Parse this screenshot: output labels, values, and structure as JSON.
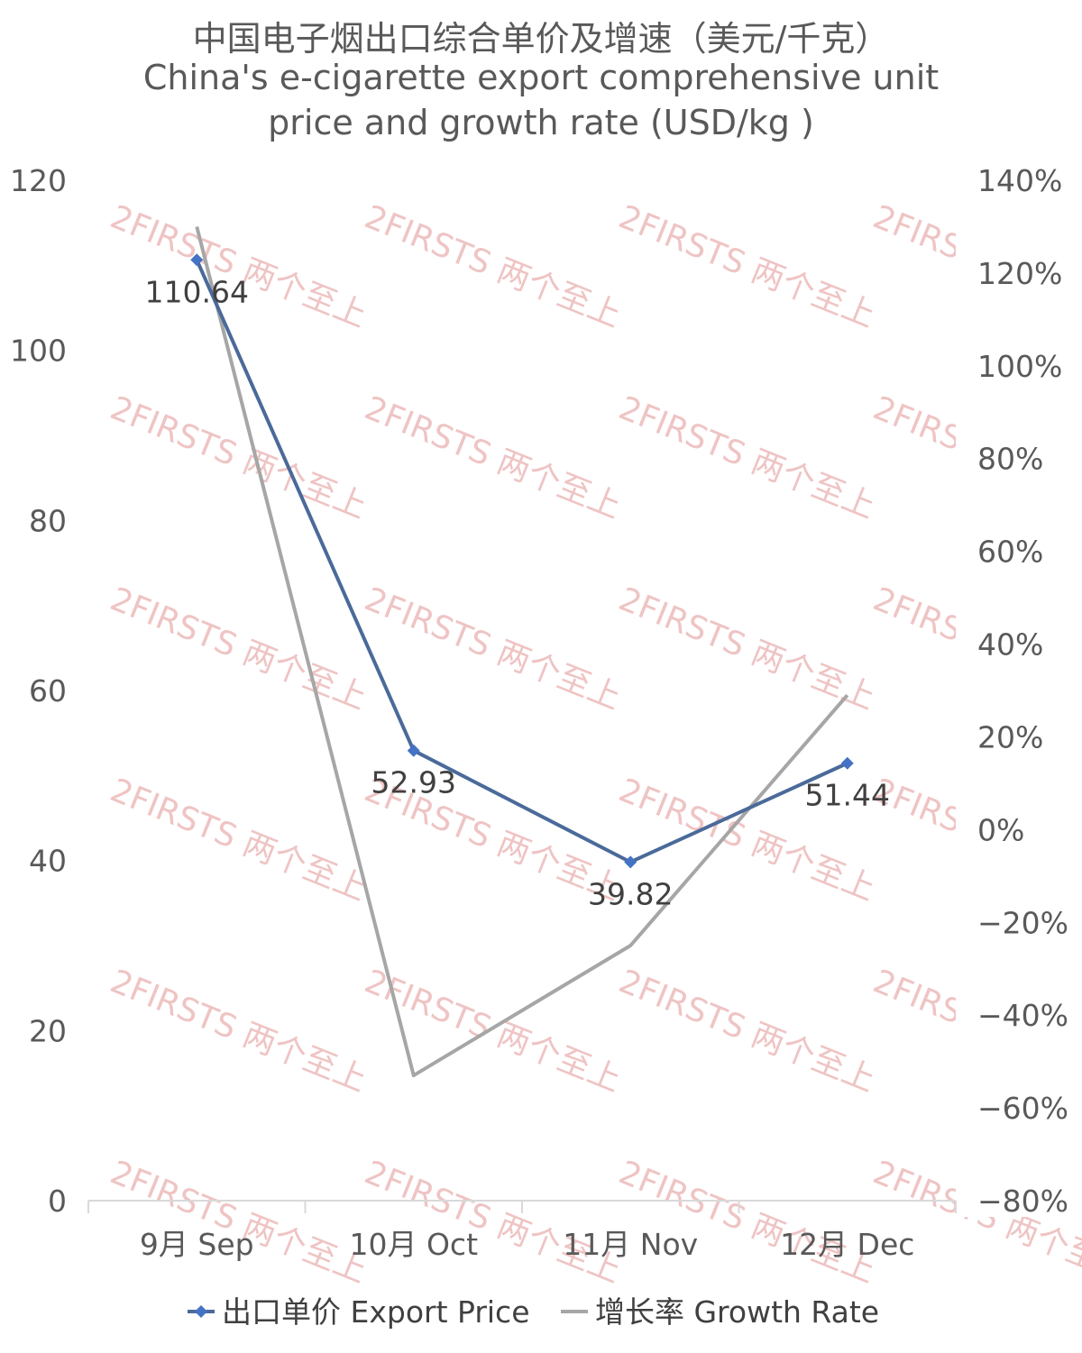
{
  "chart_data": {
    "type": "line",
    "title_cn": "中国电子烟出口综合单价及增速（美元/千克）",
    "title_en_1": "China's e-cigarette export comprehensive unit",
    "title_en_2": "price and growth rate (USD/kg )",
    "categories": [
      "9月 Sep",
      "10月 Oct",
      "11月 Nov",
      "12月 Dec"
    ],
    "series": [
      {
        "name": "出口单价 Export Price",
        "axis": "left",
        "color": "#4a6a9a",
        "marker_color": "#4472c4",
        "values": [
          110.64,
          52.93,
          39.82,
          51.44
        ],
        "labels": [
          "110.64",
          "52.93",
          "39.82",
          "51.44"
        ]
      },
      {
        "name": "增长率 Growth Rate",
        "axis": "right",
        "color": "#a6a6a6",
        "values": [
          1.3,
          -0.53,
          -0.25,
          0.29
        ]
      }
    ],
    "y_left": {
      "min": 0,
      "max": 120,
      "ticks": [
        "120",
        "100",
        "80",
        "60",
        "40",
        "20",
        "0"
      ]
    },
    "y_right": {
      "min": -0.8,
      "max": 1.4,
      "ticks": [
        "140%",
        "120%",
        "100%",
        "80%",
        "60%",
        "40%",
        "20%",
        "0%",
        "−20%",
        "−40%",
        "−60%",
        "−80%"
      ]
    },
    "grid": false,
    "legend_position": "bottom",
    "watermark": "2FIRSTS 两个至上"
  }
}
